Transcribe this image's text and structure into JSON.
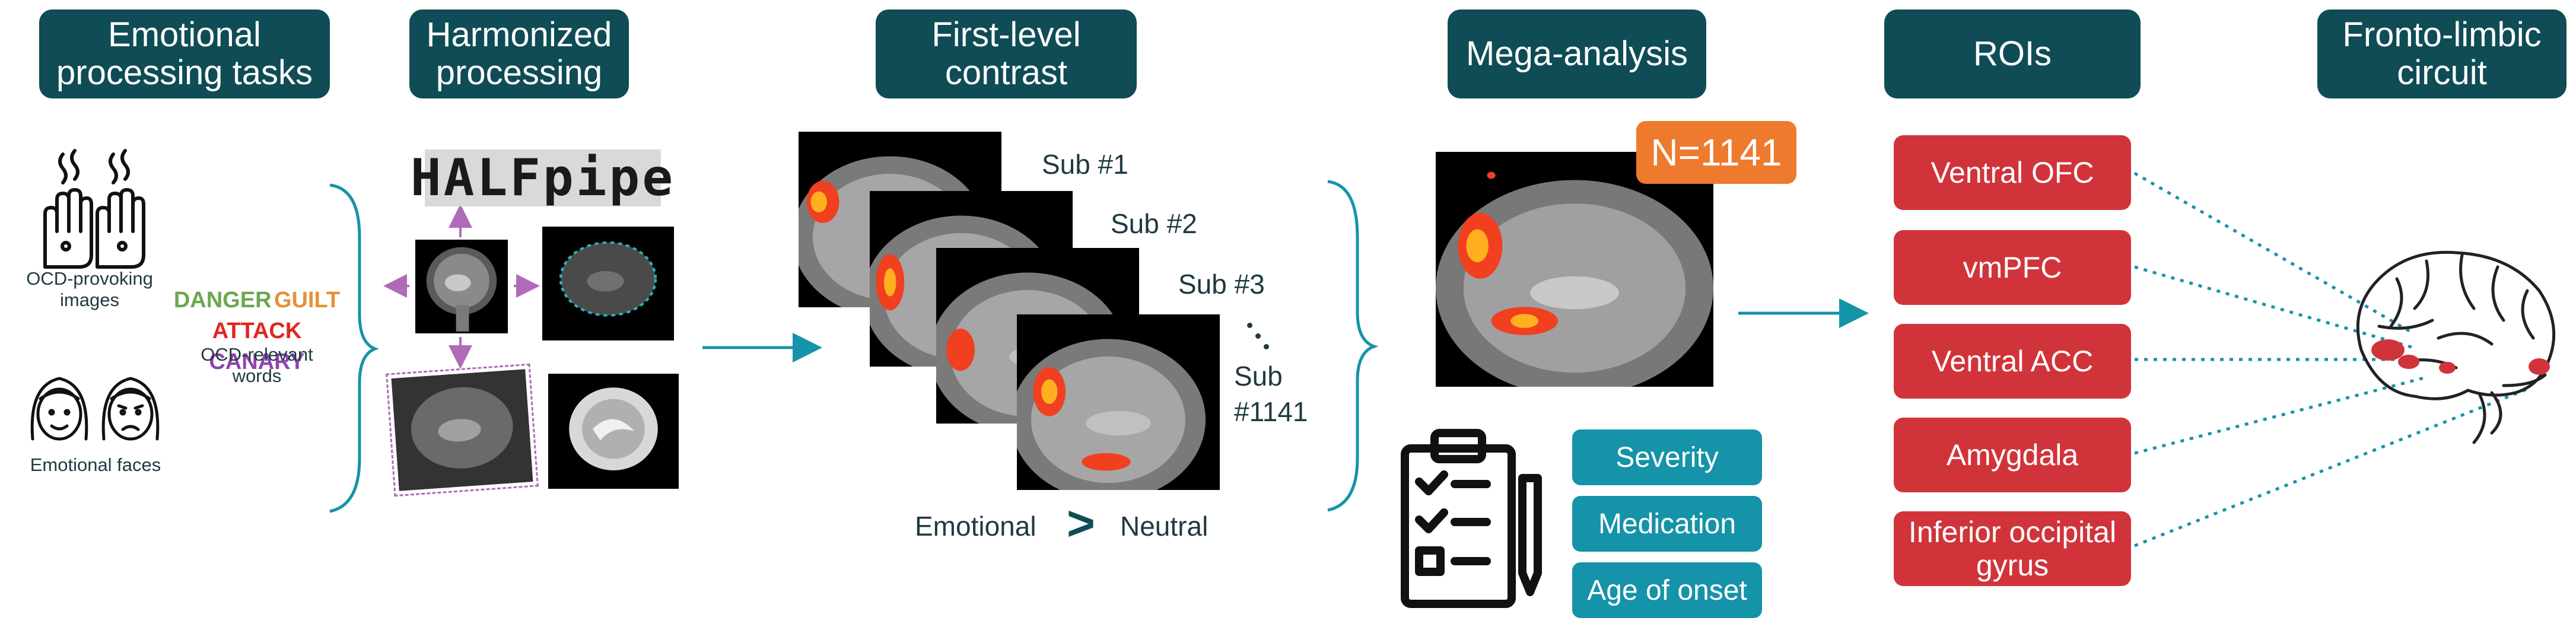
{
  "headers": [
    {
      "id": "h1",
      "text": "Emotional\nprocessing tasks"
    },
    {
      "id": "h2",
      "text": "Harmonized\nprocessing"
    },
    {
      "id": "h3",
      "text": "First-level\ncontrast"
    },
    {
      "id": "h4",
      "text": "Mega-analysis"
    },
    {
      "id": "h5",
      "text": "ROIs"
    },
    {
      "id": "h6",
      "text": "Fronto-limbic\ncircuit"
    }
  ],
  "tasks": {
    "images_label": "OCD-provoking\nimages",
    "words_label": "OCD-relevant\nwords",
    "faces_label": "Emotional faces",
    "words": [
      {
        "text": "DANGER",
        "color": "#6aa84f"
      },
      {
        "text": "GUILT",
        "color": "#e69138"
      },
      {
        "text": "ATTACK",
        "color": "#e0261f"
      },
      {
        "text": "CANARY",
        "color": "#8e44ad"
      }
    ]
  },
  "processing": {
    "tool": "HALFpipe"
  },
  "contrast": {
    "subjects": [
      "Sub #1",
      "Sub #2",
      "Sub #3",
      "Sub\n#1141"
    ],
    "left": "Emotional",
    "op": ">",
    "right": "Neutral"
  },
  "mega": {
    "n_label": "N=1141",
    "covariates": [
      "Severity",
      "Medication",
      "Age of onset"
    ]
  },
  "rois": [
    "Ventral OFC",
    "vmPFC",
    "Ventral ACC",
    "Amygdala",
    "Inferior occipital\ngyrus"
  ],
  "colors": {
    "header": "#0f4c55",
    "teal": "#1593a8",
    "roi": "#d0343a",
    "badge": "#ee7a2d",
    "connector": "#1593a8"
  }
}
